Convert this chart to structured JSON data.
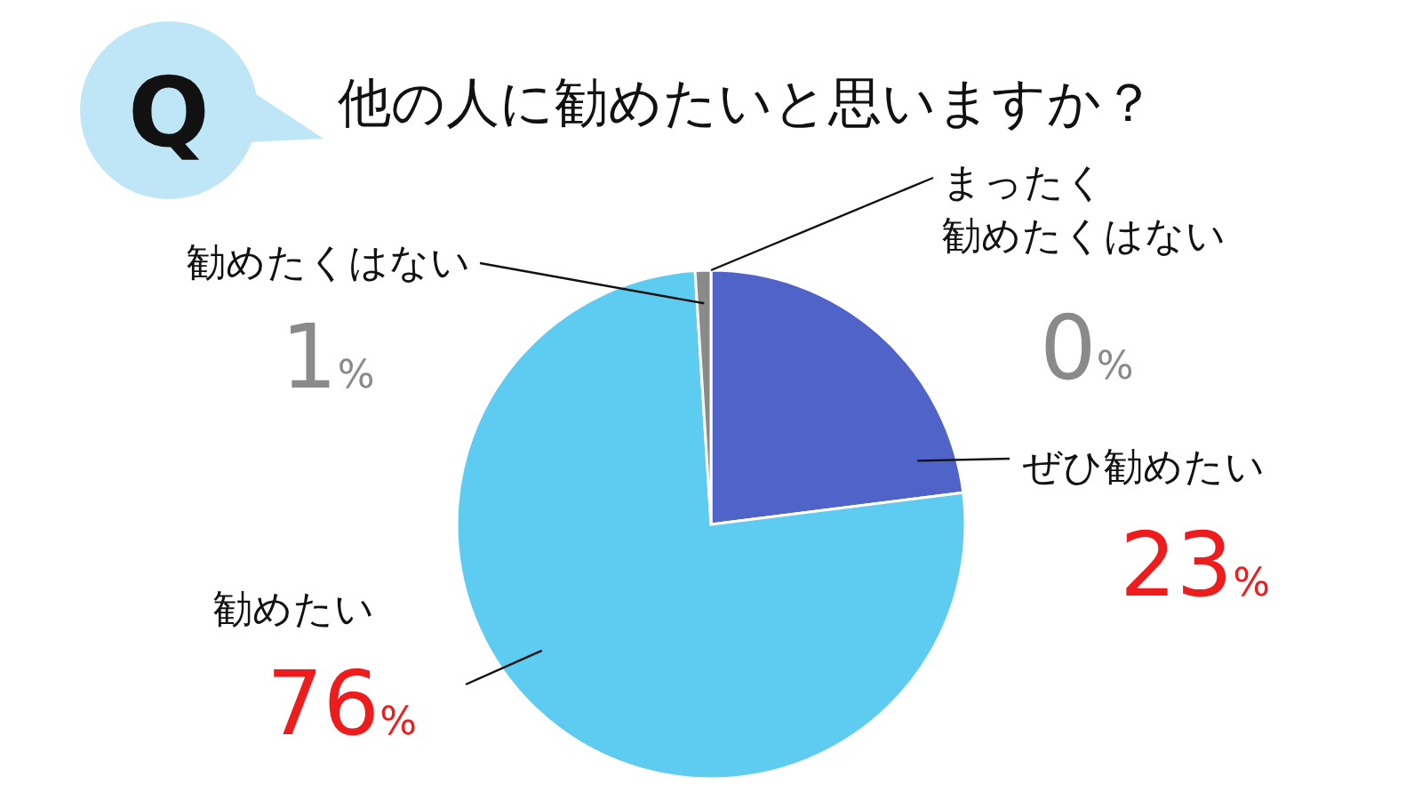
{
  "chart_data": {
    "type": "pie",
    "title": "他の人に勧めたいと思いますか？",
    "annotations": [
      "Q"
    ],
    "categories": [
      "ぜひ勧めたい",
      "勧めたい",
      "勧めたくはない",
      "まったく勧めたくはない"
    ],
    "values": [
      23,
      76,
      1,
      0
    ],
    "colors": [
      "#4f63c8",
      "#5ecbf0",
      "#8a8a8a",
      "#555555"
    ],
    "value_labels": [
      "23%",
      "76%",
      "1%",
      "0%"
    ]
  }
}
